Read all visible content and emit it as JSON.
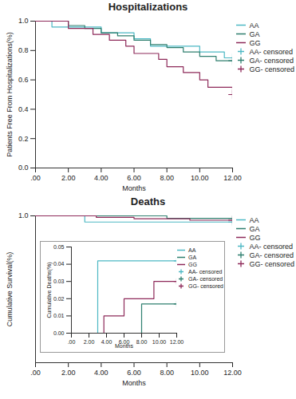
{
  "chart_data": [
    {
      "type": "line",
      "title": "Hospitalizations",
      "x_label": "Months",
      "y_label": "Patients Free From Hospitalizations(%)",
      "xlim": [
        0,
        12
      ],
      "xticks": [
        {
          "value": 0,
          "label": ".00"
        },
        {
          "value": 2,
          "label": "2.00"
        },
        {
          "value": 4,
          "label": "4.00"
        },
        {
          "value": 6,
          "label": "6.00"
        },
        {
          "value": 8,
          "label": "8.00"
        },
        {
          "value": 10,
          "label": "10.00"
        },
        {
          "value": 12,
          "label": "12.00"
        }
      ],
      "ylim": [
        0,
        1
      ],
      "yticks": [
        {
          "value": 0,
          "label": "0.0"
        },
        0.2,
        0.4,
        0.6,
        0.8,
        {
          "value": 1,
          "label": "1.0"
        }
      ],
      "grid": false,
      "legend": "top-right",
      "series": [
        {
          "name": "AA",
          "color": "#4cb8c4",
          "line_style": "step",
          "marker": "plus",
          "x": [
            0,
            1,
            4,
            6,
            7,
            10,
            11.5,
            12
          ],
          "values": [
            1,
            0.96,
            0.92,
            0.88,
            0.83,
            0.79,
            0.75,
            0.75
          ],
          "censored": {
            "name": "AA- censored",
            "x": [
              12
            ],
            "values": [
              0.75
            ]
          }
        },
        {
          "name": "GA",
          "color": "#2f7f6f",
          "line_style": "step",
          "marker": "plus",
          "x": [
            0,
            2,
            3,
            4,
            5,
            6,
            7,
            8,
            9,
            10,
            11,
            12
          ],
          "values": [
            1,
            0.97,
            0.95,
            0.92,
            0.9,
            0.87,
            0.84,
            0.82,
            0.79,
            0.76,
            0.73,
            0.73
          ],
          "censored": {
            "name": "GA- censored",
            "x": [
              12
            ],
            "values": [
              0.73
            ]
          }
        },
        {
          "name": "GG",
          "color": "#8e2a5a",
          "line_style": "step",
          "marker": "plus",
          "x": [
            0,
            2,
            3.5,
            4.5,
            5.5,
            6,
            7.5,
            8,
            9,
            10,
            10.5,
            12
          ],
          "values": [
            1,
            0.95,
            0.91,
            0.87,
            0.83,
            0.78,
            0.74,
            0.69,
            0.65,
            0.6,
            0.55,
            0.5
          ],
          "censored": {
            "name": "GG- censored",
            "x": [
              12
            ],
            "values": [
              0.5
            ]
          }
        }
      ]
    },
    {
      "type": "line",
      "title": "Deaths",
      "x_label": "Months",
      "y_label": "Cumulative Survival(%)",
      "xlim": [
        0,
        12
      ],
      "xticks": [
        {
          "value": 0,
          "label": ".00"
        },
        {
          "value": 2,
          "label": "2.00"
        },
        {
          "value": 4,
          "label": "4.00"
        },
        {
          "value": 6,
          "label": "6.00"
        },
        {
          "value": 8,
          "label": "8.00"
        },
        {
          "value": 10,
          "label": "10.00"
        },
        {
          "value": 12,
          "label": "12.00"
        }
      ],
      "ylim": [
        0,
        1
      ],
      "yticks": [
        {
          "value": 1,
          "label": "1.0"
        }
      ],
      "grid": false,
      "legend": "top-right",
      "series": [
        {
          "name": "AA",
          "color": "#4cb8c4",
          "line_style": "step",
          "marker": "plus",
          "x": [
            0,
            3,
            12
          ],
          "values": [
            1,
            0.958,
            0.958
          ],
          "censored": {
            "name": "AA- censored",
            "x": [
              12
            ],
            "values": [
              0.958
            ]
          }
        },
        {
          "name": "GA",
          "color": "#2f7f6f",
          "line_style": "step",
          "marker": "plus",
          "x": [
            0,
            8,
            12
          ],
          "values": [
            1,
            0.983,
            0.983
          ],
          "censored": {
            "name": "GA- censored",
            "x": [
              12
            ],
            "values": [
              0.983
            ]
          }
        },
        {
          "name": "GG",
          "color": "#8e2a5a",
          "line_style": "step",
          "marker": "plus",
          "x": [
            0,
            3.7,
            6,
            9.4,
            12
          ],
          "values": [
            1,
            0.99,
            0.98,
            0.97,
            0.97
          ],
          "censored": {
            "name": "GG- censored",
            "x": [
              12
            ],
            "values": [
              0.97
            ]
          }
        }
      ]
    },
    {
      "type": "line",
      "x_label": "Months",
      "y_label": "Cumulative Deaths(%)",
      "xlim": [
        0,
        12
      ],
      "xticks": [
        {
          "value": 0,
          "label": ".00"
        },
        {
          "value": 2,
          "label": "2.00"
        },
        {
          "value": 4,
          "label": "4.00"
        },
        {
          "value": 6,
          "label": "6.00"
        },
        {
          "value": 8,
          "label": "8.00"
        },
        {
          "value": 10,
          "label": "10.00"
        },
        {
          "value": 12,
          "label": "12.00"
        }
      ],
      "ylim": [
        0,
        0.05
      ],
      "yticks": [
        {
          "value": 0,
          "label": "0.00"
        },
        {
          "value": 0.01,
          "label": "0.01"
        },
        {
          "value": 0.02,
          "label": "0.02"
        },
        {
          "value": 0.03,
          "label": "0.03"
        },
        {
          "value": 0.04,
          "label": "0.04"
        },
        {
          "value": 0.05,
          "label": "0.05"
        }
      ],
      "grid": false,
      "legend": "top-right",
      "series": [
        {
          "name": "AA",
          "color": "#4cb8c4",
          "line_style": "step",
          "marker": "plus",
          "x": [
            0,
            3,
            12
          ],
          "values": [
            0,
            0.042,
            0.042
          ],
          "censored": {
            "name": "AA- censored",
            "x": [
              12
            ],
            "values": [
              0.042
            ]
          }
        },
        {
          "name": "GA",
          "color": "#2f7f6f",
          "line_style": "step",
          "marker": "plus",
          "x": [
            0,
            8,
            12
          ],
          "values": [
            0,
            0.017,
            0.017
          ],
          "censored": {
            "name": "GA- censored",
            "x": [
              12
            ],
            "values": [
              0.017
            ]
          }
        },
        {
          "name": "GG",
          "color": "#8e2a5a",
          "line_style": "step",
          "marker": "plus",
          "x": [
            0,
            3.7,
            6,
            9.4,
            12
          ],
          "values": [
            0,
            0.01,
            0.02,
            0.03,
            0.03
          ],
          "censored": {
            "name": "GG- censored",
            "x": [
              12
            ],
            "values": [
              0.03
            ]
          }
        }
      ]
    }
  ]
}
